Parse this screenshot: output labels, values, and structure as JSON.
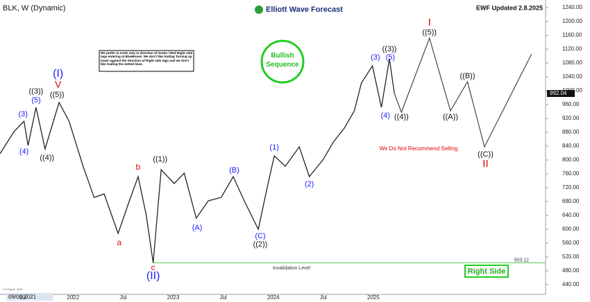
{
  "chart_data": {
    "type": "line",
    "title": "BLK, W (Dynamic)",
    "brand": "Elliott Wave Forecast",
    "updated": "EWF Updated 2.8.2025",
    "disclaimer": "We prefer to trade only in direction of Green / Red Right side tags entering at BlueBoxes. We don't like trading Turning up lower against the direction of Right side tags and we don't like trading the dotted lines.",
    "badge": "Bullish Sequence",
    "note": "We Do Not Recommend Selling",
    "right_side": "Right Side",
    "cursor_date": "09/06/2021",
    "copyright": "© eSignal, 2025",
    "color": "#222222",
    "x": [
      2021.27,
      2021.41,
      2021.51,
      2021.55,
      2021.63,
      2021.72,
      2021.86,
      2021.96,
      2022.1,
      2022.21,
      2022.31,
      2022.45,
      2022.55,
      2022.65,
      2022.73,
      2022.8,
      2022.88,
      2023.01,
      2023.11,
      2023.23,
      2023.35,
      2023.48,
      2023.6,
      2023.71,
      2023.85,
      2023.94,
      2024.01,
      2024.12,
      2024.26,
      2024.36,
      2024.5,
      2024.6,
      2024.71,
      2024.81,
      2024.88,
      2024.99,
      2025.08,
      2025.16,
      2025.21
    ],
    "values": [
      818,
      882,
      912,
      842,
      952,
      832,
      966,
      912,
      782,
      692,
      702,
      588,
      672,
      752,
      642,
      503,
      772,
      732,
      762,
      632,
      682,
      692,
      752,
      682,
      600,
      722,
      812,
      782,
      838,
      752,
      802,
      852,
      892,
      942,
      1022,
      1072,
      952,
      1092,
      992.04
    ],
    "last_price": 992.04,
    "projection": {
      "color": "#444444",
      "x": [
        2025.21,
        2025.28,
        2025.56,
        2025.77,
        2025.94,
        2026.11,
        2026.58
      ],
      "values": [
        992.04,
        938,
        1152,
        942,
        1026,
        838,
        1106
      ]
    },
    "invalidation": {
      "label": "Invalidation Level",
      "value": 503.12,
      "color": "#66cc66"
    },
    "labels": [
      {
        "text": "(I)",
        "x": 2021.85,
        "y": 1048,
        "color": "#1a1aff",
        "size": 16
      },
      {
        "text": "V",
        "x": 2021.85,
        "y": 1016,
        "color": "#e00000",
        "size": 14
      },
      {
        "text": "((3))",
        "x": 2021.63,
        "y": 998,
        "color": "#111111",
        "size": 11
      },
      {
        "text": "(5)",
        "x": 2021.63,
        "y": 972,
        "color": "#1a1aff",
        "size": 11
      },
      {
        "text": "((5))",
        "x": 2021.84,
        "y": 988,
        "color": "#111111",
        "size": 11
      },
      {
        "text": "(3)",
        "x": 2021.5,
        "y": 932,
        "color": "#1a1aff",
        "size": 11
      },
      {
        "text": "(4)",
        "x": 2021.51,
        "y": 824,
        "color": "#1a1aff",
        "size": 11
      },
      {
        "text": "((4))",
        "x": 2021.74,
        "y": 806,
        "color": "#111111",
        "size": 11
      },
      {
        "text": "b",
        "x": 2022.65,
        "y": 778,
        "color": "#e00000",
        "size": 12
      },
      {
        "text": "a",
        "x": 2022.46,
        "y": 560,
        "color": "#e00000",
        "size": 12
      },
      {
        "text": "c",
        "x": 2022.8,
        "y": 488,
        "color": "#e00000",
        "size": 12
      },
      {
        "text": "(II)",
        "x": 2022.8,
        "y": 464,
        "color": "#1a1aff",
        "size": 16
      },
      {
        "text": "((1))",
        "x": 2022.87,
        "y": 802,
        "color": "#111111",
        "size": 11
      },
      {
        "text": "(A)",
        "x": 2023.24,
        "y": 604,
        "color": "#1a1aff",
        "size": 11
      },
      {
        "text": "(B)",
        "x": 2023.61,
        "y": 770,
        "color": "#1a1aff",
        "size": 11
      },
      {
        "text": "(C)",
        "x": 2023.87,
        "y": 580,
        "color": "#1a1aff",
        "size": 11
      },
      {
        "text": "((2))",
        "x": 2023.87,
        "y": 556,
        "color": "#111111",
        "size": 11
      },
      {
        "text": "(1)",
        "x": 2024.01,
        "y": 836,
        "color": "#1a1aff",
        "size": 11
      },
      {
        "text": "(2)",
        "x": 2024.36,
        "y": 730,
        "color": "#1a1aff",
        "size": 11
      },
      {
        "text": "(3)",
        "x": 2025.02,
        "y": 1096,
        "color": "#1a1aff",
        "size": 11
      },
      {
        "text": "((3))",
        "x": 2025.16,
        "y": 1120,
        "color": "#111111",
        "size": 11
      },
      {
        "text": "(5)",
        "x": 2025.17,
        "y": 1096,
        "color": "#1a1aff",
        "size": 11
      },
      {
        "text": "(4)",
        "x": 2025.12,
        "y": 928,
        "color": "#1a1aff",
        "size": 11
      },
      {
        "text": "((4))",
        "x": 2025.28,
        "y": 924,
        "color": "#111111",
        "size": 11
      },
      {
        "text": "I",
        "x": 2025.56,
        "y": 1196,
        "color": "#e00000",
        "size": 15
      },
      {
        "text": "((5))",
        "x": 2025.56,
        "y": 1168,
        "color": "#111111",
        "size": 11
      },
      {
        "text": "((A))",
        "x": 2025.77,
        "y": 924,
        "color": "#111111",
        "size": 11
      },
      {
        "text": "((B))",
        "x": 2025.94,
        "y": 1042,
        "color": "#111111",
        "size": 11
      },
      {
        "text": "((C))",
        "x": 2026.12,
        "y": 816,
        "color": "#111111",
        "size": 11
      },
      {
        "text": "II",
        "x": 2026.12,
        "y": 788,
        "color": "#e00000",
        "size": 15
      }
    ],
    "xlim": [
      2021.27,
      2026.72
    ],
    "xticks": [
      {
        "value": 2021.5,
        "label": "Jul"
      },
      2022,
      {
        "value": 2022.5,
        "label": "Jul"
      },
      2023,
      {
        "value": 2023.5,
        "label": "Jul"
      },
      2024,
      {
        "value": 2024.5,
        "label": "Jul"
      },
      2025
    ],
    "ylim": [
      412,
      1252
    ],
    "yticks": [
      {
        "value": 440,
        "label": "440.00"
      },
      {
        "value": 480,
        "label": "480.00"
      },
      {
        "value": 520,
        "label": "520.00"
      },
      {
        "value": 560,
        "label": "560.00"
      },
      {
        "value": 600,
        "label": "600.00"
      },
      {
        "value": 640,
        "label": "640.00"
      },
      {
        "value": 680,
        "label": "680.00"
      },
      {
        "value": 720,
        "label": "720.00"
      },
      {
        "value": 760,
        "label": "760.00"
      },
      {
        "value": 800,
        "label": "800.00"
      },
      {
        "value": 840,
        "label": "840.00"
      },
      {
        "value": 880,
        "label": "880.00"
      },
      {
        "value": 920,
        "label": "920.00"
      },
      {
        "value": 960,
        "label": "960.00"
      },
      {
        "value": 1000,
        "label": "1000.00"
      },
      {
        "value": 1040,
        "label": "1040.00"
      },
      {
        "value": 1080,
        "label": "1080.00"
      },
      {
        "value": 1120,
        "label": "1120.00"
      },
      {
        "value": 1160,
        "label": "1160.00"
      },
      {
        "value": 1200,
        "label": "1200.00"
      },
      {
        "value": 1240,
        "label": "1240.00"
      }
    ]
  }
}
